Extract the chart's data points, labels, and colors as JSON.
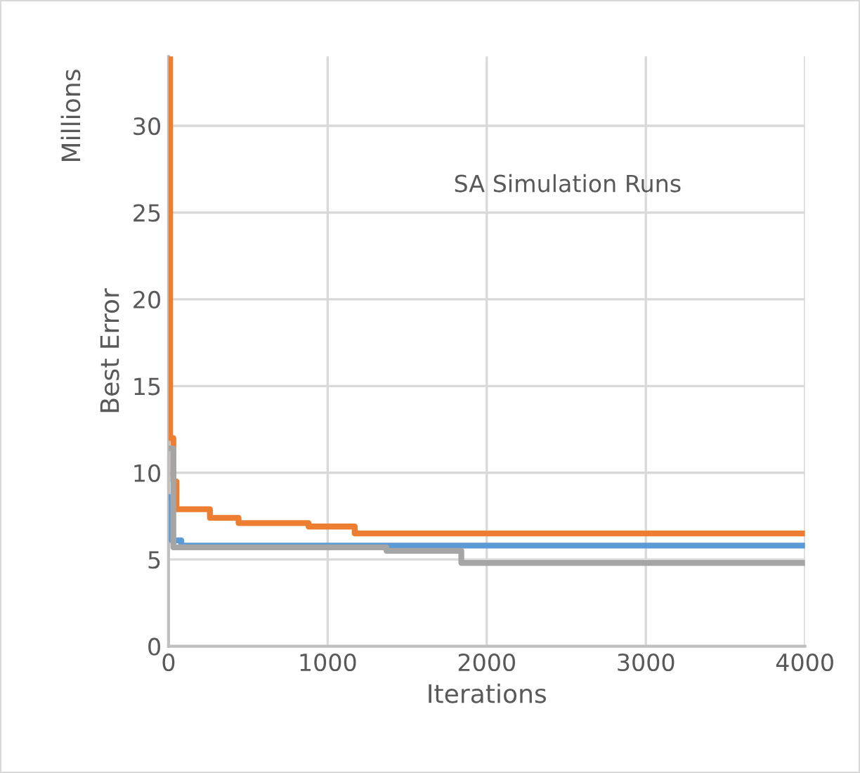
{
  "chart_data": {
    "type": "step",
    "xlabel": "Iterations",
    "ylabel": "Best Error",
    "annotations": [
      "Millions",
      "SA Simulation Runs"
    ],
    "series": [
      {
        "color": "#5b9bd5",
        "x": [
          0,
          20,
          80,
          4000
        ],
        "values": [
          8.6,
          6.1,
          5.8,
          5.8
        ]
      },
      {
        "color": "#ed7d31",
        "x": [
          0,
          10,
          30,
          50,
          260,
          440,
          880,
          1170,
          4000
        ],
        "values": [
          34,
          12,
          9.5,
          7.9,
          7.4,
          7.1,
          6.9,
          6.5,
          6.5
        ]
      },
      {
        "color": "#a5a5a5",
        "x": [
          0,
          30,
          1370,
          1840,
          4000
        ],
        "values": [
          11.4,
          5.7,
          5.5,
          4.8,
          4.8
        ]
      }
    ],
    "xlim": [
      0,
      4000
    ],
    "xticks": [
      0,
      1000,
      2000,
      3000,
      4000
    ],
    "ylim": [
      0,
      34
    ],
    "yticks": [
      0,
      5,
      10,
      15,
      20,
      25,
      30
    ],
    "grid": true
  }
}
